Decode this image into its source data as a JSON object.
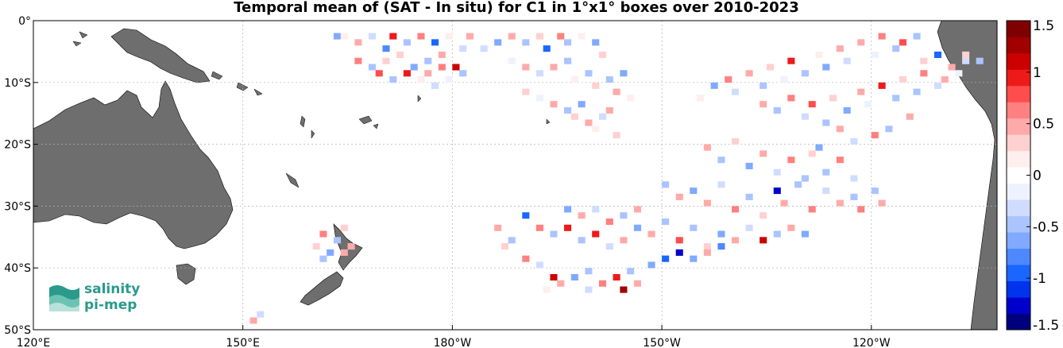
{
  "title": "Temporal mean of (SAT - In situ) for C1 in 1°x1° boxes over 2010-2023",
  "map": {
    "lon_range": [
      120,
      258
    ],
    "lat_range": [
      -50,
      0
    ],
    "x_ticks": [
      {
        "lon": 120,
        "label": "120°E"
      },
      {
        "lon": 150,
        "label": "150°E"
      },
      {
        "lon": 180,
        "label": "180°W"
      },
      {
        "lon": 210,
        "label": "150°W"
      },
      {
        "lon": 240,
        "label": "120°W"
      },
      {
        "lon": 270,
        "label": "90°W"
      }
    ],
    "y_ticks": [
      {
        "lat": 0,
        "label": "0°"
      },
      {
        "lat": -10,
        "label": "10°S"
      },
      {
        "lat": -20,
        "label": "20°S"
      },
      {
        "lat": -30,
        "label": "30°S"
      },
      {
        "lat": -40,
        "label": "40°S"
      },
      {
        "lat": -50,
        "label": "50°S"
      }
    ],
    "grid": true,
    "land_color": "#6e6e6e",
    "ocean_color": "#ffffff"
  },
  "colorbar": {
    "range": [
      -1.5,
      1.5
    ],
    "ticks": [
      {
        "value": 1.5,
        "label": "1.5"
      },
      {
        "value": 1,
        "label": "1"
      },
      {
        "value": 0.5,
        "label": "0.5"
      },
      {
        "value": 0,
        "label": "0"
      },
      {
        "value": -0.5,
        "label": "-0.5"
      },
      {
        "value": -1,
        "label": "-1"
      },
      {
        "value": -1.5,
        "label": "-1.5"
      }
    ],
    "colors_low_to_high": [
      "#00007f",
      "#0000cc",
      "#0033ee",
      "#1a66ff",
      "#4d88ff",
      "#80aaff",
      "#aac4ff",
      "#d0dcff",
      "#eef2ff",
      "#ffffff",
      "#ffeeee",
      "#ffd0d0",
      "#ffaaaa",
      "#ff8080",
      "#ff4d4d",
      "#ee1a1a",
      "#cc0000",
      "#a00000",
      "#7f0000"
    ]
  },
  "logo": {
    "line1": "salinity",
    "line2": "pi-mep"
  },
  "chart_data": {
    "type": "heatmap",
    "title": "Temporal mean of (SAT - In situ) for C1 in 1°x1° boxes over 2010-2023",
    "units": "",
    "note_values": "sampled 1°x1° box means (approximate)",
    "cells": [
      [
        163,
        -2,
        -0.6
      ],
      [
        164,
        -2,
        0.2
      ],
      [
        166,
        -3,
        0.5
      ],
      [
        168,
        -2,
        -0.3
      ],
      [
        170,
        -4,
        -0.8
      ],
      [
        171,
        -2,
        0.9
      ],
      [
        172,
        -5,
        0.3
      ],
      [
        173,
        -3,
        -0.4
      ],
      [
        175,
        -2,
        0.6
      ],
      [
        176,
        -6,
        -0.5
      ],
      [
        177,
        -3,
        -0.9
      ],
      [
        178,
        -5,
        0.4
      ],
      [
        179,
        -2,
        0.2
      ],
      [
        181,
        -4,
        -0.3
      ],
      [
        166,
        -6,
        0.7
      ],
      [
        168,
        -7,
        -0.5
      ],
      [
        169,
        -8,
        0.8
      ],
      [
        170,
        -6,
        0.3
      ],
      [
        171,
        -9,
        -0.4
      ],
      [
        173,
        -8,
        1.0
      ],
      [
        174,
        -7,
        -0.6
      ],
      [
        175,
        -9,
        0.2
      ],
      [
        176,
        -8,
        0.5
      ],
      [
        177,
        -10,
        -0.3
      ],
      [
        178,
        -7,
        0.7
      ],
      [
        179,
        -9,
        -0.2
      ],
      [
        180,
        -7,
        1.1
      ],
      [
        181,
        -8,
        -0.5
      ],
      [
        182,
        -2,
        0.4
      ],
      [
        184,
        -4,
        -0.3
      ],
      [
        186,
        -3,
        -0.7
      ],
      [
        188,
        -2,
        0.5
      ],
      [
        190,
        -3,
        -0.4
      ],
      [
        192,
        -2,
        0.3
      ],
      [
        193,
        -4,
        -0.9
      ],
      [
        195,
        -2,
        0.6
      ],
      [
        196,
        -3,
        -0.5
      ],
      [
        198,
        -2,
        0.2
      ],
      [
        200,
        -3,
        -0.6
      ],
      [
        201,
        -5,
        0.3
      ],
      [
        188,
        -6,
        -0.2
      ],
      [
        190,
        -7,
        0.4
      ],
      [
        192,
        -8,
        -0.3
      ],
      [
        194,
        -7,
        0.5
      ],
      [
        196,
        -6,
        -0.4
      ],
      [
        197,
        -9,
        0.2
      ],
      [
        199,
        -8,
        -0.5
      ],
      [
        200,
        -10,
        0.3
      ],
      [
        202,
        -9,
        -0.4
      ],
      [
        203,
        -11,
        0.5
      ],
      [
        204,
        -8,
        -0.6
      ],
      [
        205,
        -12,
        0.2
      ],
      [
        190,
        -11,
        0.3
      ],
      [
        192,
        -12,
        -0.2
      ],
      [
        194,
        -13,
        0.4
      ],
      [
        196,
        -14,
        -0.5
      ],
      [
        197,
        -15,
        0.3
      ],
      [
        198,
        -13,
        -0.7
      ],
      [
        199,
        -16,
        0.4
      ],
      [
        200,
        -17,
        0.2
      ],
      [
        201,
        -15,
        -0.3
      ],
      [
        202,
        -14,
        0.5
      ],
      [
        203,
        -18,
        0.3
      ],
      [
        215,
        -12,
        0.2
      ],
      [
        217,
        -10,
        -0.6
      ],
      [
        219,
        -9,
        0.7
      ],
      [
        220,
        -11,
        -0.3
      ],
      [
        222,
        -8,
        0.4
      ],
      [
        224,
        -10,
        -0.5
      ],
      [
        225,
        -7,
        0.3
      ],
      [
        227,
        -9,
        -0.2
      ],
      [
        228,
        -6,
        0.9
      ],
      [
        230,
        -8,
        -0.4
      ],
      [
        232,
        -5,
        0.2
      ],
      [
        233,
        -7,
        -0.6
      ],
      [
        235,
        -4,
        0.4
      ],
      [
        236,
        -6,
        -0.3
      ],
      [
        238,
        -3,
        0.5
      ],
      [
        240,
        -5,
        -0.2
      ],
      [
        241,
        -2,
        0.6
      ],
      [
        243,
        -4,
        -0.4
      ],
      [
        244,
        -3,
        0.8
      ],
      [
        246,
        -2,
        -0.5
      ],
      [
        247,
        -6,
        0.3
      ],
      [
        249,
        -5,
        -0.9
      ],
      [
        251,
        -7,
        0.4
      ],
      [
        253,
        -6,
        -0.3
      ],
      [
        224,
        -13,
        0.5
      ],
      [
        226,
        -14,
        -0.4
      ],
      [
        228,
        -12,
        0.6
      ],
      [
        230,
        -15,
        -0.3
      ],
      [
        231,
        -13,
        0.8
      ],
      [
        233,
        -16,
        -0.5
      ],
      [
        234,
        -12,
        0.3
      ],
      [
        236,
        -14,
        -0.6
      ],
      [
        238,
        -11,
        0.5
      ],
      [
        239,
        -13,
        -0.2
      ],
      [
        241,
        -10,
        0.9
      ],
      [
        243,
        -12,
        -0.4
      ],
      [
        244,
        -9,
        0.3
      ],
      [
        246,
        -11,
        -0.5
      ],
      [
        247,
        -8,
        0.6
      ],
      [
        249,
        -10,
        -0.3
      ],
      [
        250,
        -9,
        0.5
      ],
      [
        252,
        -8,
        -0.2
      ],
      [
        245,
        -15,
        0.4
      ],
      [
        242,
        -17,
        -0.5
      ],
      [
        240,
        -18,
        0.7
      ],
      [
        237,
        -19,
        -0.3
      ],
      [
        235,
        -17,
        0.4
      ],
      [
        232,
        -20,
        -0.6
      ],
      [
        216,
        -20,
        0.5
      ],
      [
        218,
        -22,
        -0.4
      ],
      [
        220,
        -19,
        0.3
      ],
      [
        222,
        -23,
        -0.6
      ],
      [
        224,
        -21,
        0.5
      ],
      [
        226,
        -24,
        -0.3
      ],
      [
        228,
        -22,
        0.7
      ],
      [
        230,
        -25,
        -0.4
      ],
      [
        231,
        -21,
        0.3
      ],
      [
        233,
        -24,
        -0.5
      ],
      [
        235,
        -22,
        0.6
      ],
      [
        237,
        -25,
        -0.3
      ],
      [
        210,
        -26,
        -0.5
      ],
      [
        212,
        -28,
        0.4
      ],
      [
        214,
        -27,
        -0.7
      ],
      [
        216,
        -29,
        0.5
      ],
      [
        218,
        -26,
        -0.3
      ],
      [
        220,
        -30,
        0.6
      ],
      [
        222,
        -28,
        -0.4
      ],
      [
        224,
        -31,
        0.3
      ],
      [
        226,
        -27,
        -1.2
      ],
      [
        227,
        -29,
        0.5
      ],
      [
        229,
        -26,
        -0.4
      ],
      [
        231,
        -30,
        0.6
      ],
      [
        233,
        -27,
        -0.3
      ],
      [
        235,
        -29,
        0.4
      ],
      [
        237,
        -28,
        -0.5
      ],
      [
        238,
        -30,
        0.7
      ],
      [
        240,
        -27,
        -0.4
      ],
      [
        241,
        -29,
        0.5
      ],
      [
        196,
        -30,
        -0.6
      ],
      [
        198,
        -31,
        0.4
      ],
      [
        200,
        -30,
        -0.3
      ],
      [
        202,
        -32,
        0.7
      ],
      [
        204,
        -31,
        -0.5
      ],
      [
        206,
        -30,
        0.4
      ],
      [
        190,
        -31,
        -1.0
      ],
      [
        192,
        -33,
        0.6
      ],
      [
        194,
        -34,
        -0.4
      ],
      [
        196,
        -33,
        0.9
      ],
      [
        198,
        -35,
        -0.5
      ],
      [
        200,
        -34,
        1.0
      ],
      [
        202,
        -36,
        -0.3
      ],
      [
        204,
        -35,
        0.5
      ],
      [
        206,
        -33,
        -0.6
      ],
      [
        208,
        -34,
        0.4
      ],
      [
        210,
        -32,
        -0.5
      ],
      [
        212,
        -35,
        0.8
      ],
      [
        214,
        -33,
        -0.4
      ],
      [
        216,
        -36,
        0.3
      ],
      [
        218,
        -34,
        -0.7
      ],
      [
        220,
        -35,
        0.5
      ],
      [
        222,
        -33,
        -0.3
      ],
      [
        224,
        -35,
        1.1
      ],
      [
        226,
        -34,
        -0.4
      ],
      [
        228,
        -33,
        0.5
      ],
      [
        230,
        -34,
        -0.6
      ],
      [
        186,
        -33,
        0.4
      ],
      [
        188,
        -35,
        -0.5
      ],
      [
        187,
        -36,
        0.3
      ],
      [
        190,
        -38,
        0.6
      ],
      [
        192,
        -39,
        -0.3
      ],
      [
        194,
        -41,
        1.1
      ],
      [
        195,
        -42,
        0.5
      ],
      [
        197,
        -41,
        -0.7
      ],
      [
        199,
        -40,
        -0.4
      ],
      [
        201,
        -42,
        0.6
      ],
      [
        203,
        -41,
        1.0
      ],
      [
        205,
        -40,
        -0.5
      ],
      [
        206,
        -42,
        0.4
      ],
      [
        208,
        -39,
        -0.6
      ],
      [
        210,
        -38,
        -0.9
      ],
      [
        212,
        -37,
        -1.2
      ],
      [
        214,
        -38,
        -0.6
      ],
      [
        216,
        -37,
        0.4
      ],
      [
        218,
        -36,
        -0.8
      ],
      [
        204,
        -43,
        1.3
      ],
      [
        199,
        -43,
        -0.3
      ],
      [
        193,
        -43,
        0.2
      ],
      [
        161,
        -34,
        0.6
      ],
      [
        163,
        -35,
        -0.5
      ],
      [
        164,
        -33,
        0.3
      ],
      [
        165,
        -36,
        0.5
      ],
      [
        162,
        -37,
        -0.6
      ],
      [
        160,
        -36,
        0.3
      ],
      [
        164,
        -37,
        0.4
      ],
      [
        161,
        -38,
        -0.5
      ],
      [
        151,
        -48,
        0.4
      ],
      [
        152,
        -47,
        -0.3
      ],
      [
        253,
        -5,
        0.3
      ],
      [
        255,
        -6,
        -0.5
      ]
    ]
  }
}
